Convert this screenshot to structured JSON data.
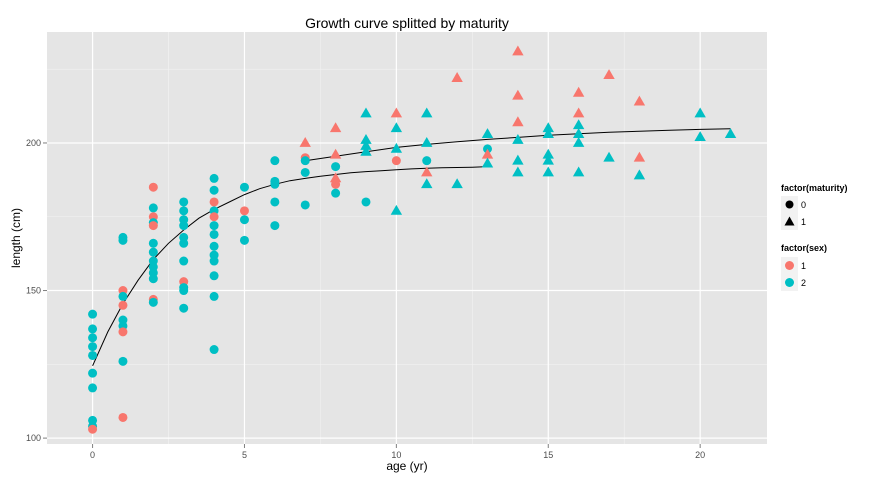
{
  "chart_data": {
    "type": "scatter",
    "title": "Growth curve splitted by maturity",
    "xlabel": "age (yr)",
    "ylabel": "length (cm)",
    "xlim": [
      -1.5,
      22.2
    ],
    "ylim": [
      98,
      237.6
    ],
    "x_ticks": [
      0,
      5,
      10,
      15,
      20
    ],
    "y_ticks": [
      100,
      150,
      200
    ],
    "grid": true,
    "colors": {
      "sex_1": "#F8766D",
      "sex_2": "#00BFC4",
      "panel": "#E5E5E5",
      "grid": "#FFFFFF",
      "curve": "#000000"
    },
    "legends": [
      {
        "title": "factor(maturity)",
        "entries": [
          {
            "label": "0",
            "shape": "circle"
          },
          {
            "label": "1",
            "shape": "triangle"
          }
        ]
      },
      {
        "title": "factor(sex)",
        "entries": [
          {
            "label": "1",
            "color": "#F8766D"
          },
          {
            "label": "2",
            "color": "#00BFC4"
          }
        ]
      }
    ],
    "points": [
      {
        "x": 0,
        "y": 142,
        "sex": 2,
        "maturity": 0
      },
      {
        "x": 0,
        "y": 137,
        "sex": 2,
        "maturity": 0
      },
      {
        "x": 0,
        "y": 134,
        "sex": 2,
        "maturity": 0
      },
      {
        "x": 0,
        "y": 131,
        "sex": 2,
        "maturity": 0
      },
      {
        "x": 0,
        "y": 128,
        "sex": 2,
        "maturity": 0
      },
      {
        "x": 0,
        "y": 122,
        "sex": 2,
        "maturity": 0
      },
      {
        "x": 0,
        "y": 117,
        "sex": 2,
        "maturity": 0
      },
      {
        "x": 0,
        "y": 106,
        "sex": 2,
        "maturity": 0
      },
      {
        "x": 0,
        "y": 104,
        "sex": 2,
        "maturity": 0
      },
      {
        "x": 0,
        "y": 103,
        "sex": 1,
        "maturity": 0
      },
      {
        "x": 1,
        "y": 168,
        "sex": 2,
        "maturity": 0
      },
      {
        "x": 1,
        "y": 167,
        "sex": 2,
        "maturity": 0
      },
      {
        "x": 1,
        "y": 150,
        "sex": 1,
        "maturity": 0
      },
      {
        "x": 1,
        "y": 148,
        "sex": 2,
        "maturity": 0
      },
      {
        "x": 1,
        "y": 145,
        "sex": 1,
        "maturity": 0
      },
      {
        "x": 1,
        "y": 140,
        "sex": 2,
        "maturity": 0
      },
      {
        "x": 1,
        "y": 138,
        "sex": 2,
        "maturity": 0
      },
      {
        "x": 1,
        "y": 136,
        "sex": 1,
        "maturity": 0
      },
      {
        "x": 1,
        "y": 126,
        "sex": 2,
        "maturity": 0
      },
      {
        "x": 1,
        "y": 107,
        "sex": 1,
        "maturity": 0
      },
      {
        "x": 2,
        "y": 185,
        "sex": 1,
        "maturity": 0
      },
      {
        "x": 2,
        "y": 178,
        "sex": 2,
        "maturity": 0
      },
      {
        "x": 2,
        "y": 175,
        "sex": 1,
        "maturity": 0
      },
      {
        "x": 2,
        "y": 173,
        "sex": 2,
        "maturity": 0
      },
      {
        "x": 2,
        "y": 172,
        "sex": 1,
        "maturity": 0
      },
      {
        "x": 2,
        "y": 166,
        "sex": 2,
        "maturity": 0
      },
      {
        "x": 2,
        "y": 163,
        "sex": 2,
        "maturity": 0
      },
      {
        "x": 2,
        "y": 160,
        "sex": 2,
        "maturity": 0
      },
      {
        "x": 2,
        "y": 158,
        "sex": 2,
        "maturity": 0
      },
      {
        "x": 2,
        "y": 156,
        "sex": 2,
        "maturity": 0
      },
      {
        "x": 2,
        "y": 154,
        "sex": 2,
        "maturity": 0
      },
      {
        "x": 2,
        "y": 147,
        "sex": 1,
        "maturity": 0
      },
      {
        "x": 2,
        "y": 146,
        "sex": 2,
        "maturity": 0
      },
      {
        "x": 3,
        "y": 180,
        "sex": 2,
        "maturity": 0
      },
      {
        "x": 3,
        "y": 177,
        "sex": 2,
        "maturity": 0
      },
      {
        "x": 3,
        "y": 174,
        "sex": 2,
        "maturity": 0
      },
      {
        "x": 3,
        "y": 172,
        "sex": 2,
        "maturity": 0
      },
      {
        "x": 3,
        "y": 168,
        "sex": 2,
        "maturity": 0
      },
      {
        "x": 3,
        "y": 166,
        "sex": 2,
        "maturity": 0
      },
      {
        "x": 3,
        "y": 160,
        "sex": 2,
        "maturity": 0
      },
      {
        "x": 3,
        "y": 153,
        "sex": 1,
        "maturity": 0
      },
      {
        "x": 3,
        "y": 151,
        "sex": 2,
        "maturity": 0
      },
      {
        "x": 3,
        "y": 150,
        "sex": 2,
        "maturity": 0
      },
      {
        "x": 3,
        "y": 144,
        "sex": 2,
        "maturity": 0
      },
      {
        "x": 4,
        "y": 188,
        "sex": 2,
        "maturity": 0
      },
      {
        "x": 4,
        "y": 184,
        "sex": 2,
        "maturity": 0
      },
      {
        "x": 4,
        "y": 180,
        "sex": 1,
        "maturity": 0
      },
      {
        "x": 4,
        "y": 177,
        "sex": 2,
        "maturity": 0
      },
      {
        "x": 4,
        "y": 175,
        "sex": 1,
        "maturity": 0
      },
      {
        "x": 4,
        "y": 172,
        "sex": 2,
        "maturity": 0
      },
      {
        "x": 4,
        "y": 169,
        "sex": 2,
        "maturity": 0
      },
      {
        "x": 4,
        "y": 165,
        "sex": 2,
        "maturity": 0
      },
      {
        "x": 4,
        "y": 162,
        "sex": 2,
        "maturity": 0
      },
      {
        "x": 4,
        "y": 160,
        "sex": 2,
        "maturity": 0
      },
      {
        "x": 4,
        "y": 155,
        "sex": 2,
        "maturity": 0
      },
      {
        "x": 4,
        "y": 148,
        "sex": 2,
        "maturity": 0
      },
      {
        "x": 4,
        "y": 130,
        "sex": 2,
        "maturity": 0
      },
      {
        "x": 5,
        "y": 185,
        "sex": 2,
        "maturity": 0
      },
      {
        "x": 5,
        "y": 177,
        "sex": 1,
        "maturity": 0
      },
      {
        "x": 5,
        "y": 174,
        "sex": 2,
        "maturity": 0
      },
      {
        "x": 5,
        "y": 167,
        "sex": 2,
        "maturity": 0
      },
      {
        "x": 6,
        "y": 194,
        "sex": 2,
        "maturity": 0
      },
      {
        "x": 6,
        "y": 187,
        "sex": 2,
        "maturity": 0
      },
      {
        "x": 6,
        "y": 186,
        "sex": 2,
        "maturity": 0
      },
      {
        "x": 6,
        "y": 180,
        "sex": 2,
        "maturity": 0
      },
      {
        "x": 6,
        "y": 172,
        "sex": 2,
        "maturity": 0
      },
      {
        "x": 7,
        "y": 200,
        "sex": 1,
        "maturity": 1
      },
      {
        "x": 7,
        "y": 195,
        "sex": 1,
        "maturity": 0
      },
      {
        "x": 7,
        "y": 194,
        "sex": 2,
        "maturity": 0
      },
      {
        "x": 7,
        "y": 190,
        "sex": 2,
        "maturity": 0
      },
      {
        "x": 7,
        "y": 179,
        "sex": 2,
        "maturity": 0
      },
      {
        "x": 8,
        "y": 205,
        "sex": 1,
        "maturity": 1
      },
      {
        "x": 8,
        "y": 196,
        "sex": 1,
        "maturity": 1
      },
      {
        "x": 8,
        "y": 192,
        "sex": 2,
        "maturity": 0
      },
      {
        "x": 8,
        "y": 188,
        "sex": 1,
        "maturity": 1
      },
      {
        "x": 8,
        "y": 186,
        "sex": 1,
        "maturity": 0
      },
      {
        "x": 8,
        "y": 183,
        "sex": 2,
        "maturity": 0
      },
      {
        "x": 9,
        "y": 210,
        "sex": 2,
        "maturity": 1
      },
      {
        "x": 9,
        "y": 201,
        "sex": 2,
        "maturity": 1
      },
      {
        "x": 9,
        "y": 199,
        "sex": 2,
        "maturity": 1
      },
      {
        "x": 9,
        "y": 197,
        "sex": 2,
        "maturity": 1
      },
      {
        "x": 9,
        "y": 180,
        "sex": 2,
        "maturity": 0
      },
      {
        "x": 10,
        "y": 210,
        "sex": 1,
        "maturity": 1
      },
      {
        "x": 10,
        "y": 205,
        "sex": 2,
        "maturity": 1
      },
      {
        "x": 10,
        "y": 198,
        "sex": 2,
        "maturity": 1
      },
      {
        "x": 10,
        "y": 194,
        "sex": 1,
        "maturity": 0
      },
      {
        "x": 10,
        "y": 177,
        "sex": 2,
        "maturity": 1
      },
      {
        "x": 11,
        "y": 210,
        "sex": 2,
        "maturity": 1
      },
      {
        "x": 11,
        "y": 200,
        "sex": 2,
        "maturity": 1
      },
      {
        "x": 11,
        "y": 194,
        "sex": 2,
        "maturity": 0
      },
      {
        "x": 11,
        "y": 190,
        "sex": 1,
        "maturity": 1
      },
      {
        "x": 11,
        "y": 186,
        "sex": 2,
        "maturity": 1
      },
      {
        "x": 12,
        "y": 222,
        "sex": 1,
        "maturity": 1
      },
      {
        "x": 12,
        "y": 186,
        "sex": 2,
        "maturity": 1
      },
      {
        "x": 13,
        "y": 203,
        "sex": 2,
        "maturity": 1
      },
      {
        "x": 13,
        "y": 198,
        "sex": 2,
        "maturity": 0
      },
      {
        "x": 13,
        "y": 196,
        "sex": 1,
        "maturity": 1
      },
      {
        "x": 13,
        "y": 193,
        "sex": 2,
        "maturity": 1
      },
      {
        "x": 14,
        "y": 231,
        "sex": 1,
        "maturity": 1
      },
      {
        "x": 14,
        "y": 216,
        "sex": 1,
        "maturity": 1
      },
      {
        "x": 14,
        "y": 207,
        "sex": 1,
        "maturity": 1
      },
      {
        "x": 14,
        "y": 201,
        "sex": 2,
        "maturity": 1
      },
      {
        "x": 14,
        "y": 194,
        "sex": 2,
        "maturity": 1
      },
      {
        "x": 14,
        "y": 190,
        "sex": 2,
        "maturity": 1
      },
      {
        "x": 15,
        "y": 205,
        "sex": 2,
        "maturity": 1
      },
      {
        "x": 15,
        "y": 203,
        "sex": 2,
        "maturity": 1
      },
      {
        "x": 15,
        "y": 196,
        "sex": 2,
        "maturity": 1
      },
      {
        "x": 15,
        "y": 194,
        "sex": 2,
        "maturity": 1
      },
      {
        "x": 15,
        "y": 190,
        "sex": 2,
        "maturity": 1
      },
      {
        "x": 16,
        "y": 217,
        "sex": 1,
        "maturity": 1
      },
      {
        "x": 16,
        "y": 210,
        "sex": 1,
        "maturity": 1
      },
      {
        "x": 16,
        "y": 206,
        "sex": 2,
        "maturity": 1
      },
      {
        "x": 16,
        "y": 203,
        "sex": 2,
        "maturity": 1
      },
      {
        "x": 16,
        "y": 200,
        "sex": 2,
        "maturity": 1
      },
      {
        "x": 16,
        "y": 190,
        "sex": 2,
        "maturity": 1
      },
      {
        "x": 17,
        "y": 223,
        "sex": 1,
        "maturity": 1
      },
      {
        "x": 17,
        "y": 195,
        "sex": 2,
        "maturity": 1
      },
      {
        "x": 18,
        "y": 214,
        "sex": 1,
        "maturity": 1
      },
      {
        "x": 18,
        "y": 195,
        "sex": 1,
        "maturity": 1
      },
      {
        "x": 18,
        "y": 189,
        "sex": 2,
        "maturity": 1
      },
      {
        "x": 20,
        "y": 210,
        "sex": 2,
        "maturity": 1
      },
      {
        "x": 20,
        "y": 202,
        "sex": 2,
        "maturity": 1
      },
      {
        "x": 21,
        "y": 203,
        "sex": 2,
        "maturity": 1
      }
    ],
    "curves": [
      {
        "maturity": 0,
        "x": [
          0,
          0.5,
          1,
          1.5,
          2,
          2.5,
          3,
          3.5,
          4,
          4.5,
          5,
          5.5,
          6,
          6.5,
          7,
          7.5,
          8,
          8.5,
          9,
          9.5,
          10,
          10.5,
          11,
          11.5,
          12,
          12.5,
          13
        ],
        "y": [
          124.5,
          136,
          145.5,
          153.5,
          160.5,
          166,
          170.5,
          174.5,
          177.5,
          180,
          182.5,
          184.5,
          186,
          187.2,
          188,
          188.7,
          189.3,
          189.9,
          190.3,
          190.6,
          190.9,
          191.2,
          191.4,
          191.6,
          191.7,
          191.8,
          192
        ]
      },
      {
        "maturity": 1,
        "x": [
          7,
          8,
          9,
          10,
          11,
          12,
          13,
          14,
          15,
          16,
          17,
          18,
          19,
          20,
          21
        ],
        "y": [
          194,
          195.5,
          197,
          198.5,
          199.5,
          200.4,
          201.2,
          201.9,
          202.6,
          203.1,
          203.6,
          204,
          204.3,
          204.6,
          204.8
        ]
      }
    ]
  }
}
